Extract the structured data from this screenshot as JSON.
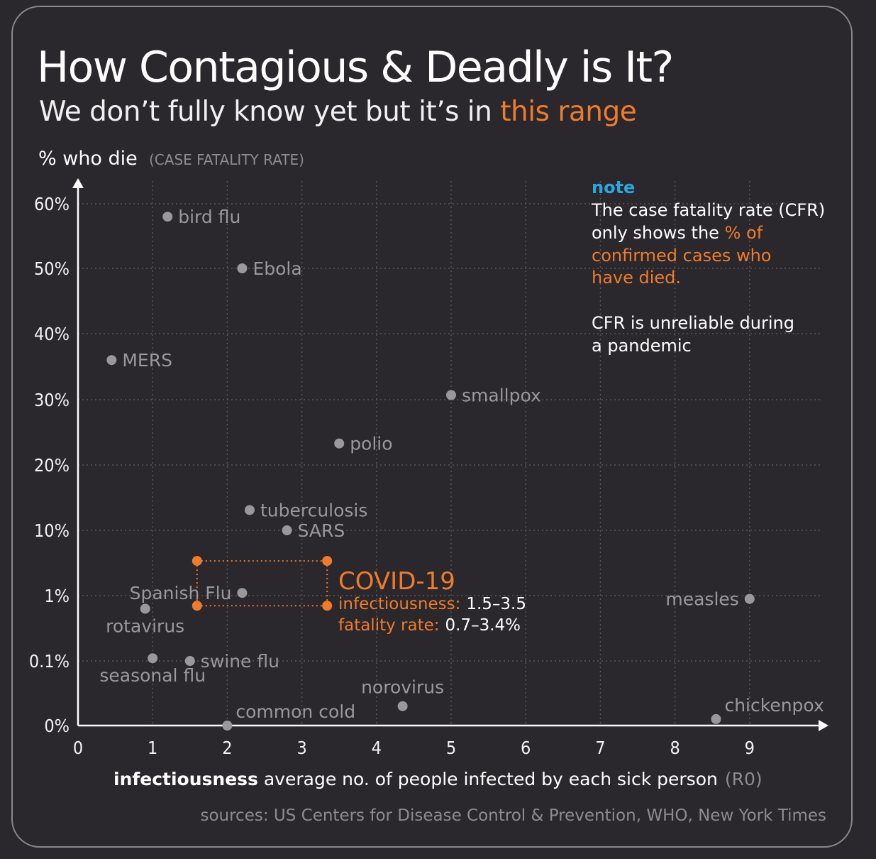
{
  "header": {
    "title": "How Contagious & Deadly is It?",
    "subtitle_prefix": "We don’t fully know yet but it’s in ",
    "subtitle_highlight": "this range"
  },
  "note": {
    "heading": "note",
    "line1": "The case fatality rate (CFR)",
    "line2_prefix": "only shows the ",
    "line2_highlight": "% of",
    "line3": "confirmed cases who",
    "line4": "have died.",
    "line5": "CFR is unreliable during",
    "line6": "a pandemic"
  },
  "covid": {
    "title": "COVID-19",
    "infectiousness_label": "infectiousness:",
    "infectiousness_value": "1.5–3.5",
    "fatality_label": "fatality rate:",
    "fatality_value": "0.7–3.4%"
  },
  "footer": {
    "xlabel_bold": "infectiousness",
    "xlabel_rest": " average no. of people infected by each sick person",
    "xlabel_unit": "(R0)",
    "sources": "sources: US Centers for Disease Control & Prevention, WHO, New York Times"
  },
  "colors": {
    "background": "#2a272d",
    "accent": "#f07c2a",
    "note_heading": "#29a8e0",
    "point": "#9b989c",
    "axis": "#ffffff"
  },
  "chart_data": {
    "type": "scatter",
    "title": "How Contagious & Deadly is It?",
    "xlabel": "infectiousness average no. of people infected by each sick person (R0)",
    "ylabel": "% who die",
    "ylabel_sub": "(CASE FATALITY RATE)",
    "xlim": [
      0,
      10
    ],
    "x_ticks": [
      0,
      1,
      2,
      3,
      4,
      5,
      6,
      7,
      8,
      9
    ],
    "x_tick_labels": [
      "0",
      "1",
      "2",
      "3",
      "4",
      "5",
      "6",
      "7",
      "8",
      "9"
    ],
    "y_scale": "piecewise (0, 0.1, 1, then linear 10-60)",
    "y_ticks": [
      0,
      0.1,
      1,
      10,
      20,
      30,
      40,
      50,
      60
    ],
    "y_tick_labels": [
      "0%",
      "0.1%",
      "1%",
      "10%",
      "20%",
      "30%",
      "40%",
      "50%",
      "60%"
    ],
    "grid": true,
    "points": [
      {
        "name": "bird flu",
        "x": 1.2,
        "y": 58,
        "label_side": "right"
      },
      {
        "name": "Ebola",
        "x": 2.2,
        "y": 50,
        "label_side": "right"
      },
      {
        "name": "MERS",
        "x": 0.45,
        "y": 36,
        "label_side": "right"
      },
      {
        "name": "smallpox",
        "x": 5.0,
        "y": 30.7,
        "label_side": "right"
      },
      {
        "name": "polio",
        "x": 3.5,
        "y": 23.3,
        "label_side": "right"
      },
      {
        "name": "tuberculosis",
        "x": 2.3,
        "y": 13.1,
        "label_side": "right"
      },
      {
        "name": "SARS",
        "x": 2.8,
        "y": 10,
        "label_side": "right"
      },
      {
        "name": "Spanish Flu",
        "x": 2.2,
        "y": 1.1,
        "label_side": "left"
      },
      {
        "name": "measles",
        "x": 9.0,
        "y": 0.89,
        "label_side": "left"
      },
      {
        "name": "rotavirus",
        "x": 0.9,
        "y": 0.63,
        "label_side": "below"
      },
      {
        "name": "seasonal flu",
        "x": 1.0,
        "y": 0.11,
        "label_side": "below"
      },
      {
        "name": "swine flu",
        "x": 1.5,
        "y": 0.1,
        "label_side": "right"
      },
      {
        "name": "norovirus",
        "x": 4.35,
        "y": 0.03,
        "label_side": "above"
      },
      {
        "name": "common cold",
        "x": 2.0,
        "y": 0,
        "label_side": "aboveright"
      },
      {
        "name": "chickenpox",
        "x": 8.55,
        "y": 0.01,
        "label_side": "aboveright"
      }
    ],
    "covid_range": {
      "x": [
        1.5,
        3.5
      ],
      "y": [
        0.7,
        3.4
      ]
    }
  }
}
